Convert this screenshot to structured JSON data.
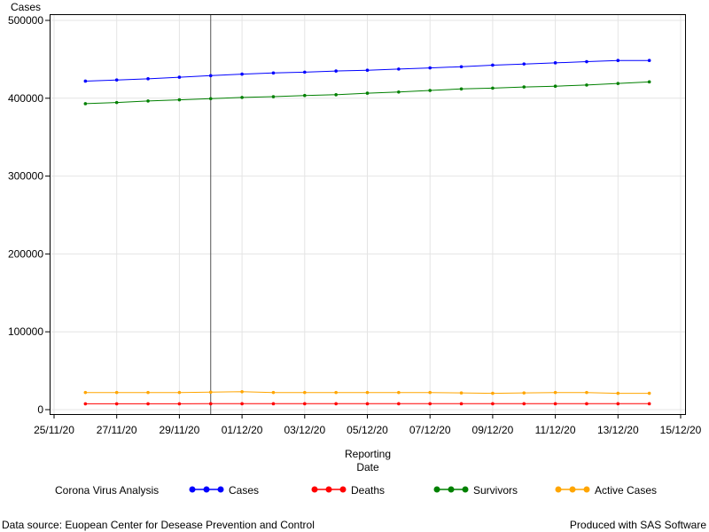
{
  "chart_data": {
    "type": "line",
    "ylabel": "Cases",
    "xlabel_lines": [
      "Reporting",
      "Date"
    ],
    "x_ticks": [
      "25/11/20",
      "27/11/20",
      "29/11/20",
      "01/12/20",
      "03/12/20",
      "05/12/20",
      "07/12/20",
      "09/12/20",
      "11/12/20",
      "13/12/20",
      "15/12/20"
    ],
    "y_ticks": [
      "0",
      "100000",
      "200000",
      "300000",
      "400000",
      "500000"
    ],
    "ylim": [
      0,
      500000
    ],
    "x_start": "25/11/20",
    "x_end": "15/12/20",
    "reference_line": "30/11/20",
    "grid": true,
    "legend_title": "Corona Virus Analysis",
    "legend_position": "bottom",
    "dates": [
      "26/11/20",
      "27/11/20",
      "28/11/20",
      "29/11/20",
      "30/11/20",
      "01/12/20",
      "02/12/20",
      "03/12/20",
      "04/12/20",
      "05/12/20",
      "06/12/20",
      "07/12/20",
      "08/12/20",
      "09/12/20",
      "10/12/20",
      "11/12/20",
      "12/12/20",
      "13/12/20",
      "14/12/20"
    ],
    "series": [
      {
        "name": "Cases",
        "color": "#0000ff",
        "values": [
          422000,
          423500,
          425000,
          427000,
          429000,
          431000,
          432500,
          433500,
          435000,
          436000,
          437500,
          439000,
          440500,
          442500,
          444000,
          445500,
          447000,
          448500,
          448500
        ]
      },
      {
        "name": "Deaths",
        "color": "#ff0000",
        "values": [
          7500,
          7500,
          7500,
          7500,
          7600,
          7600,
          7600,
          7600,
          7600,
          7600,
          7600,
          7600,
          7600,
          7600,
          7600,
          7600,
          7600,
          7600,
          7600
        ]
      },
      {
        "name": "Survivors",
        "color": "#008000",
        "values": [
          393000,
          394500,
          396500,
          398000,
          399500,
          401000,
          402000,
          403500,
          404500,
          406500,
          408000,
          410000,
          412000,
          413000,
          414500,
          415500,
          417000,
          419000,
          421000
        ]
      },
      {
        "name": "Active Cases",
        "color": "#ffa500",
        "values": [
          22000,
          22000,
          22000,
          22000,
          22500,
          23000,
          22000,
          22000,
          22000,
          22000,
          22000,
          22000,
          21500,
          21000,
          21500,
          22000,
          22000,
          21000,
          21000
        ]
      }
    ]
  },
  "footer": {
    "source": "Data source: Euopean Center for Desease Prevention and Control",
    "produced": "Produced with SAS Software"
  }
}
